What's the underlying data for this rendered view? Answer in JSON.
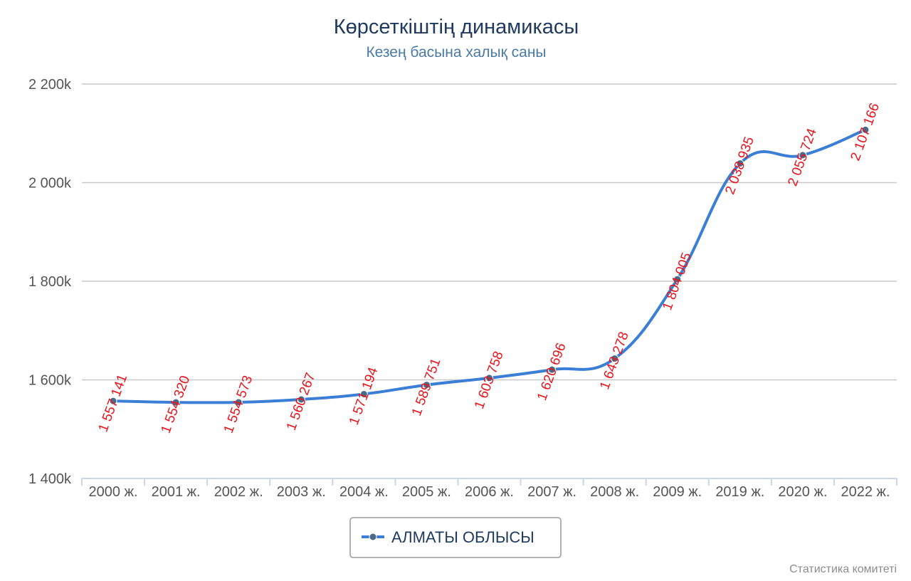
{
  "chart_data": {
    "type": "line",
    "title": "Көрсеткіштің динамикасы",
    "subtitle": "Кезең басына халық саны",
    "categories": [
      "2000 ж.",
      "2001 ж.",
      "2002 ж.",
      "2003 ж.",
      "2004 ж.",
      "2005 ж.",
      "2006 ж.",
      "2007 ж.",
      "2008 ж.",
      "2009 ж.",
      "2019 ж.",
      "2020 ж.",
      "2022 ж."
    ],
    "series": [
      {
        "name": "АЛМАТЫ ОБЛЫСЫ",
        "values": [
          1557141,
          1554320,
          1554573,
          1560267,
          1571194,
          1589751,
          1603758,
          1620696,
          1643278,
          1804005,
          2038935,
          2055724,
          2107166
        ],
        "labels": [
          "1 557 141",
          "1 554 320",
          "1 554 573",
          "1 560 267",
          "1 571 194",
          "1 589 751",
          "1 603 758",
          "1 620 696",
          "1 643 278",
          "1 804 005",
          "2 038 935",
          "2 055 724",
          "2 107 166"
        ],
        "color": "#3a7fd5"
      }
    ],
    "yticks": [
      1400000,
      1600000,
      1800000,
      2000000,
      2200000
    ],
    "ytick_labels": [
      "1 400k",
      "1 600k",
      "1 800k",
      "2 000k",
      "2 200k"
    ],
    "ylim": [
      1400000,
      2200000
    ],
    "grid": true,
    "legend_position": "bottom-center",
    "data_label_color": "#e8141b",
    "credits": "Статистика комитеті"
  }
}
